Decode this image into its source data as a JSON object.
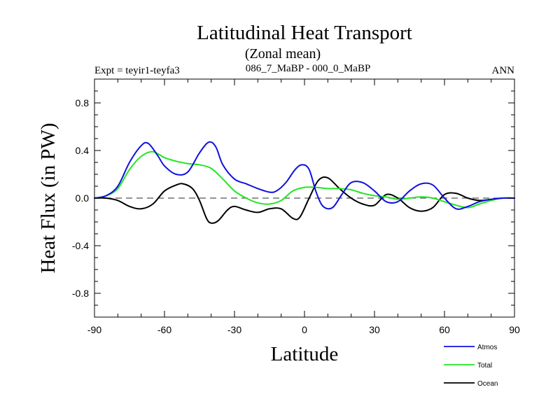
{
  "chart_data": {
    "type": "line",
    "title": "Latitudinal Heat Transport",
    "subtitle": "(Zonal mean)",
    "left_label": "Expt = teyir1-teyfa3",
    "center_label": "086_7_MaBP - 000_0_MaBP",
    "right_label": "ANN",
    "xlabel": "Latitude",
    "ylabel": "Heat Flux (in PW)",
    "xlim": [
      -90,
      90
    ],
    "ylim": [
      -1.0,
      1.0
    ],
    "x_ticks": [
      -90,
      -60,
      -30,
      0,
      30,
      60,
      90
    ],
    "x_tick_labels": [
      "-90",
      "-60",
      "-30",
      "0",
      "30",
      "60",
      "90"
    ],
    "y_ticks": [
      -0.8,
      -0.4,
      0.0,
      0.4,
      0.8
    ],
    "y_tick_labels": [
      "-0.8",
      "-0.4",
      "0.0",
      "0.4",
      "0.8"
    ],
    "grid": false,
    "zero_line": true,
    "legend_position": "bottom-right",
    "colors": {
      "Atmos": "#1010e0",
      "Total": "#22e622",
      "Ocean": "#000000",
      "zero_line": "#555555"
    },
    "series": [
      {
        "name": "Atmos",
        "x": [
          -90,
          -85,
          -80,
          -75,
          -70,
          -67,
          -63,
          -60,
          -55,
          -50,
          -45,
          -41,
          -38,
          -35,
          -30,
          -25,
          -20,
          -15,
          -12,
          -8,
          -4,
          -1,
          2,
          5,
          8,
          12,
          16,
          20,
          25,
          30,
          35,
          40,
          45,
          50,
          55,
          60,
          65,
          70,
          75,
          80,
          85,
          90
        ],
        "y": [
          0.0,
          0.02,
          0.1,
          0.3,
          0.44,
          0.46,
          0.36,
          0.27,
          0.2,
          0.22,
          0.38,
          0.47,
          0.43,
          0.28,
          0.16,
          0.12,
          0.08,
          0.05,
          0.06,
          0.13,
          0.24,
          0.28,
          0.24,
          0.05,
          -0.07,
          -0.08,
          0.03,
          0.13,
          0.13,
          0.06,
          -0.03,
          -0.03,
          0.06,
          0.12,
          0.11,
          0.0,
          -0.09,
          -0.07,
          -0.03,
          -0.01,
          0.0,
          0.0
        ]
      },
      {
        "name": "Total",
        "x": [
          -90,
          -85,
          -80,
          -75,
          -70,
          -65,
          -60,
          -55,
          -50,
          -45,
          -40,
          -35,
          -30,
          -25,
          -20,
          -15,
          -10,
          -5,
          0,
          5,
          10,
          15,
          20,
          25,
          30,
          35,
          40,
          45,
          50,
          55,
          60,
          65,
          70,
          75,
          80,
          85,
          90
        ],
        "y": [
          0.0,
          0.02,
          0.08,
          0.24,
          0.35,
          0.39,
          0.34,
          0.31,
          0.29,
          0.28,
          0.25,
          0.16,
          0.06,
          0.0,
          -0.04,
          -0.05,
          -0.02,
          0.06,
          0.09,
          0.09,
          0.08,
          0.08,
          0.07,
          0.04,
          0.02,
          0.01,
          -0.01,
          0.0,
          0.01,
          0.0,
          -0.03,
          -0.06,
          -0.08,
          -0.05,
          -0.02,
          0.0,
          0.0
        ]
      },
      {
        "name": "Ocean",
        "x": [
          -90,
          -85,
          -80,
          -75,
          -70,
          -65,
          -60,
          -55,
          -52,
          -48,
          -45,
          -42,
          -40,
          -37,
          -33,
          -30,
          -25,
          -20,
          -15,
          -10,
          -5,
          -2,
          2,
          6,
          10,
          15,
          20,
          25,
          30,
          35,
          40,
          45,
          50,
          55,
          60,
          65,
          70,
          75,
          80,
          85,
          90
        ],
        "y": [
          0.0,
          0.0,
          -0.02,
          -0.07,
          -0.09,
          -0.05,
          0.06,
          0.11,
          0.12,
          0.08,
          -0.02,
          -0.17,
          -0.21,
          -0.19,
          -0.1,
          -0.07,
          -0.1,
          -0.12,
          -0.09,
          -0.09,
          -0.17,
          -0.16,
          0.0,
          0.15,
          0.17,
          0.08,
          0.0,
          -0.05,
          -0.06,
          0.03,
          0.0,
          -0.08,
          -0.11,
          -0.08,
          0.03,
          0.04,
          0.0,
          -0.02,
          -0.01,
          0.0,
          0.0
        ]
      }
    ]
  }
}
